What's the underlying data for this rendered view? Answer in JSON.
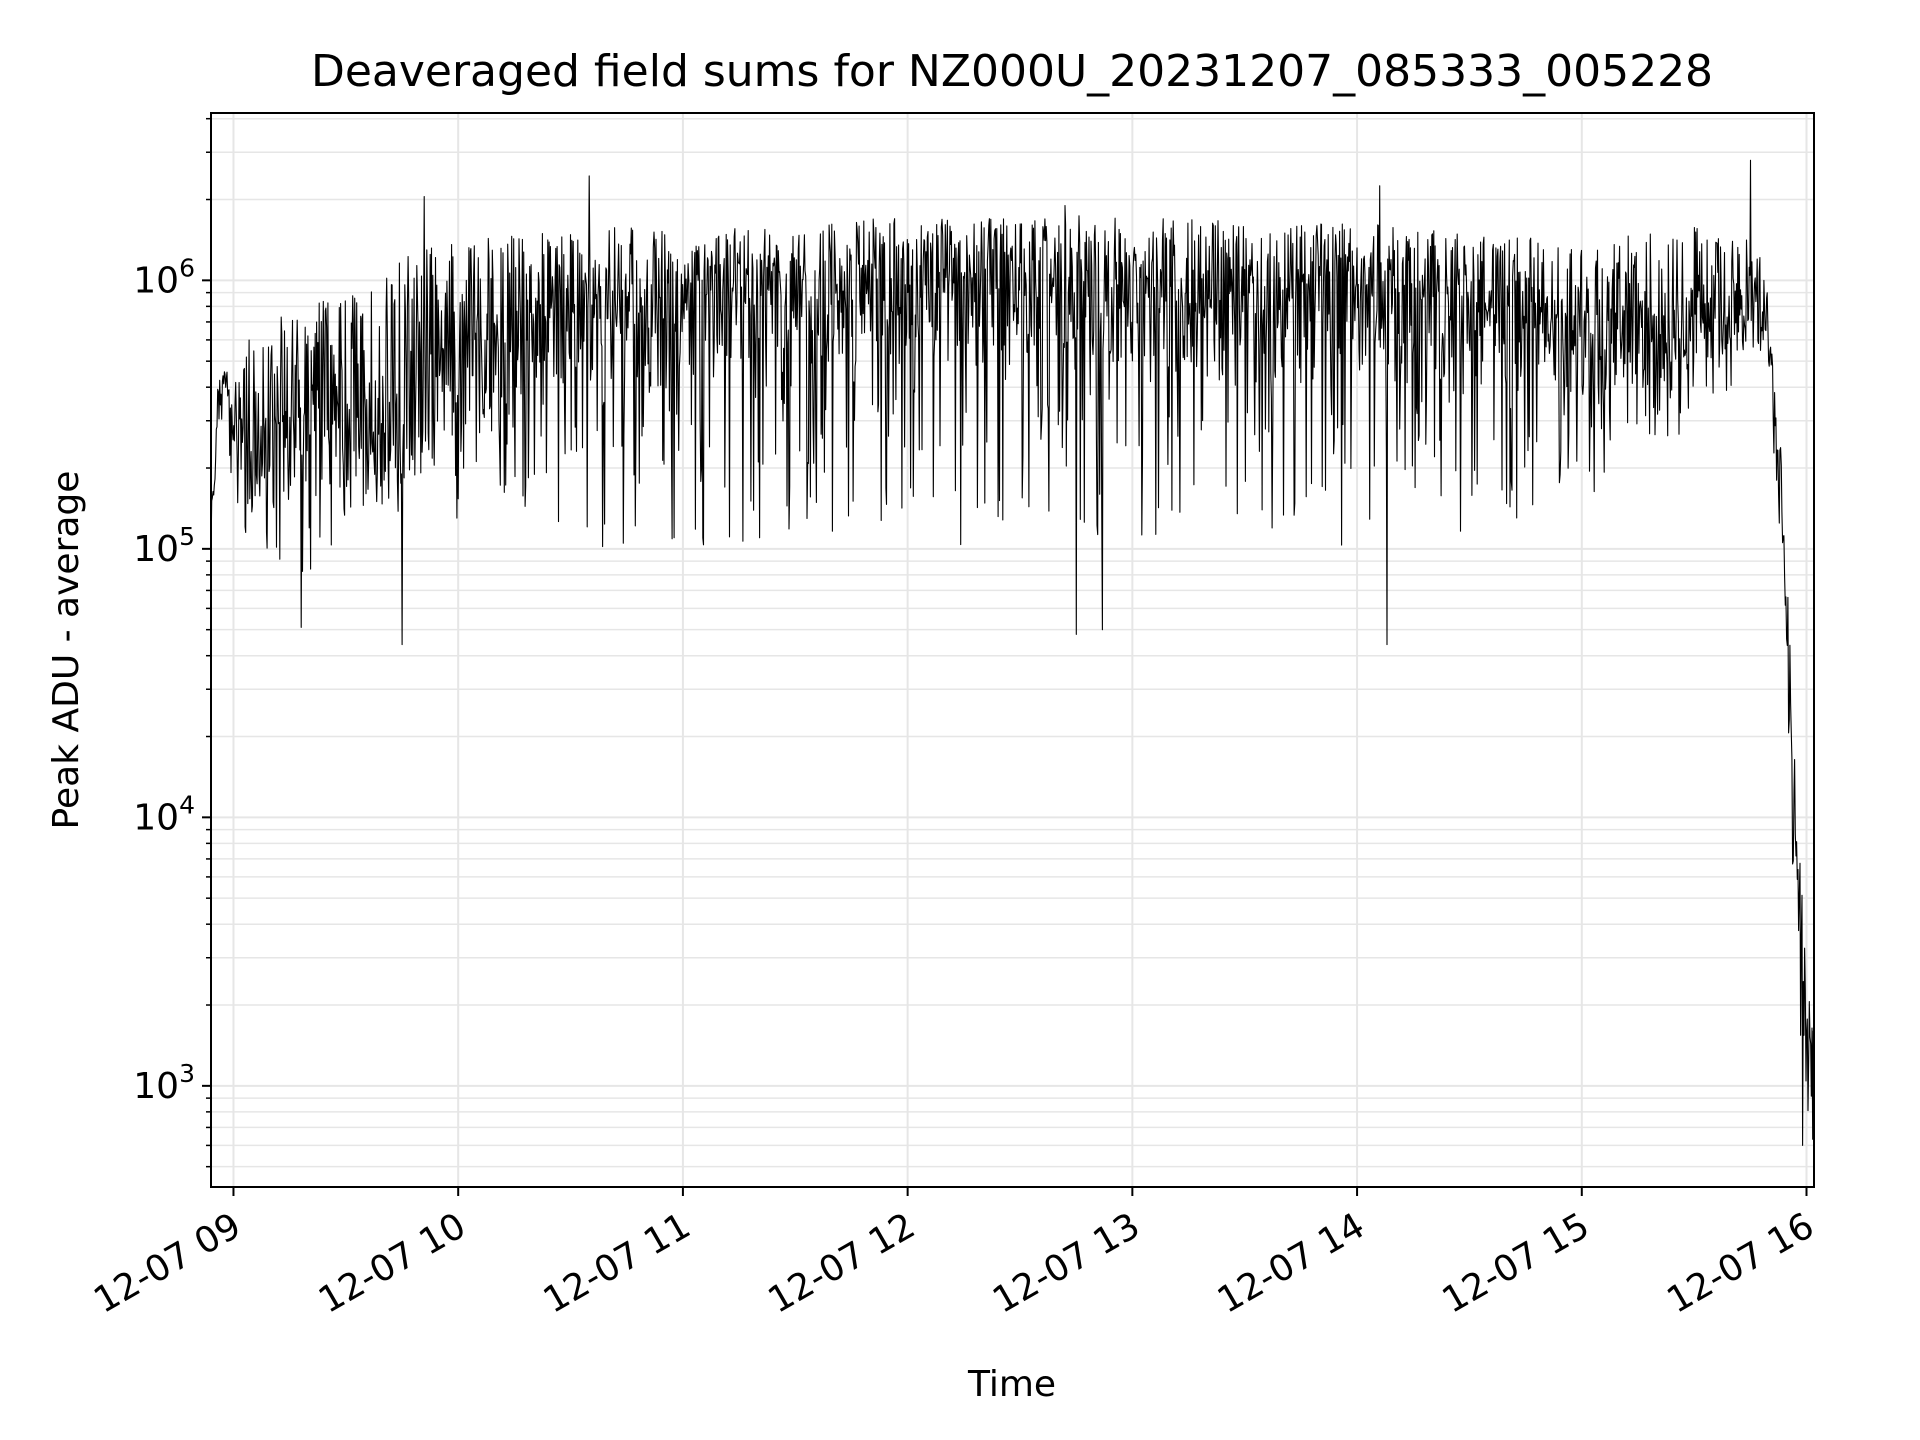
{
  "chart_data": {
    "type": "line",
    "title": "Deaveraged field sums for NZ000U_20231207_085333_005228",
    "xlabel": "Time",
    "ylabel": "Peak ADU - average",
    "yscale": "log",
    "grid": true,
    "line_color": "#000000",
    "grid_color": "#e6e6e6",
    "xlim": [
      "2023-12-07 08:54",
      "2023-12-07 16:02"
    ],
    "ylim": [
      420,
      4200000
    ],
    "x_ticks": [
      {
        "value": "2023-12-07 09:00",
        "label": "12-07 09"
      },
      {
        "value": "2023-12-07 10:00",
        "label": "12-07 10"
      },
      {
        "value": "2023-12-07 11:00",
        "label": "12-07 11"
      },
      {
        "value": "2023-12-07 12:00",
        "label": "12-07 12"
      },
      {
        "value": "2023-12-07 13:00",
        "label": "12-07 13"
      },
      {
        "value": "2023-12-07 14:00",
        "label": "12-07 14"
      },
      {
        "value": "2023-12-07 15:00",
        "label": "12-07 15"
      },
      {
        "value": "2023-12-07 16:00",
        "label": "12-07 16"
      }
    ],
    "y_ticks": [
      {
        "value": 1000,
        "base": "10",
        "exp": "3"
      },
      {
        "value": 10000,
        "base": "10",
        "exp": "4"
      },
      {
        "value": 100000,
        "base": "10",
        "exp": "5"
      },
      {
        "value": 1000000,
        "base": "10",
        "exp": "6"
      }
    ],
    "series": [
      {
        "x": [
          "2023-12-07 08:54",
          "2023-12-07 08:56",
          "2023-12-07 08:58",
          "2023-12-07 09:00",
          "2023-12-07 09:04",
          "2023-12-07 09:10",
          "2023-12-07 09:15",
          "2023-12-07 09:20",
          "2023-12-07 09:25",
          "2023-12-07 09:30",
          "2023-12-07 09:35",
          "2023-12-07 09:40",
          "2023-12-07 09:45",
          "2023-12-07 09:50",
          "2023-12-07 09:55",
          "2023-12-07 10:00",
          "2023-12-07 10:10",
          "2023-12-07 10:20",
          "2023-12-07 10:30",
          "2023-12-07 10:40",
          "2023-12-07 10:50",
          "2023-12-07 11:00",
          "2023-12-07 11:15",
          "2023-12-07 11:30",
          "2023-12-07 11:45",
          "2023-12-07 12:00",
          "2023-12-07 12:15",
          "2023-12-07 12:30",
          "2023-12-07 12:45",
          "2023-12-07 13:00",
          "2023-12-07 13:15",
          "2023-12-07 13:30",
          "2023-12-07 13:45",
          "2023-12-07 14:00",
          "2023-12-07 14:15",
          "2023-12-07 14:30",
          "2023-12-07 14:45",
          "2023-12-07 15:00",
          "2023-12-07 15:15",
          "2023-12-07 15:30",
          "2023-12-07 15:40",
          "2023-12-07 15:45",
          "2023-12-07 15:50",
          "2023-12-07 15:52",
          "2023-12-07 15:54",
          "2023-12-07 15:56",
          "2023-12-07 15:58",
          "2023-12-07 16:00",
          "2023-12-07 16:02"
        ],
        "y": [
          100000,
          400000,
          420000,
          300000,
          200000,
          250000,
          200000,
          350000,
          250000,
          300000,
          200000,
          300000,
          250000,
          350000,
          400000,
          450000,
          400000,
          550000,
          650000,
          700000,
          600000,
          650000,
          750000,
          800000,
          750000,
          850000,
          800000,
          750000,
          750000,
          800000,
          700000,
          650000,
          700000,
          750000,
          700000,
          650000,
          600000,
          550000,
          600000,
          650000,
          700000,
          700000,
          650000,
          200000,
          100000,
          20000,
          4000,
          1200,
          900
        ],
        "y_low": [
          100000,
          300000,
          250000,
          150000,
          90000,
          90000,
          80000,
          70000,
          80000,
          110000,
          140000,
          120000,
          140000,
          160000,
          150000,
          110000,
          120000,
          140000,
          110000,
          100000,
          110000,
          100000,
          100000,
          110000,
          110000,
          110000,
          100000,
          110000,
          110000,
          110000,
          110000,
          100000,
          110000,
          100000,
          110000,
          110000,
          130000,
          140000,
          180000,
          250000,
          350000,
          400000,
          450000,
          150000,
          90000,
          8000,
          1800,
          700,
          600
        ],
        "y_high": [
          150000,
          500000,
          480000,
          420000,
          600000,
          800000,
          700000,
          800000,
          850000,
          950000,
          950000,
          1000000,
          1200000,
          1300000,
          1400000,
          1500000,
          1500000,
          1500000,
          1500000,
          1600000,
          1600000,
          1500000,
          1600000,
          1650000,
          1700000,
          1700000,
          1700000,
          1700000,
          1750000,
          1700000,
          1700000,
          1650000,
          1650000,
          1650000,
          1550000,
          1500000,
          1450000,
          1350000,
          1500000,
          1700000,
          1600000,
          1500000,
          1000000,
          300000,
          200000,
          30000,
          8000,
          3000,
          2000
        ],
        "spikes": [
          {
            "x": "2023-12-07 09:51",
            "y": 2050000
          },
          {
            "x": "2023-12-07 10:35",
            "y": 2450000
          },
          {
            "x": "2023-12-07 12:42",
            "y": 1900000
          },
          {
            "x": "2023-12-07 14:06",
            "y": 2250000
          },
          {
            "x": "2023-12-07 15:45",
            "y": 2800000
          },
          {
            "x": "2023-12-07 09:45",
            "y": 44000
          },
          {
            "x": "2023-12-07 14:08",
            "y": 44000
          },
          {
            "x": "2023-12-07 12:45",
            "y": 48000
          },
          {
            "x": "2023-12-07 12:52",
            "y": 50000
          },
          {
            "x": "2023-12-07 09:18",
            "y": 51000
          },
          {
            "x": "2023-12-07 15:59",
            "y": 600
          }
        ]
      }
    ]
  }
}
